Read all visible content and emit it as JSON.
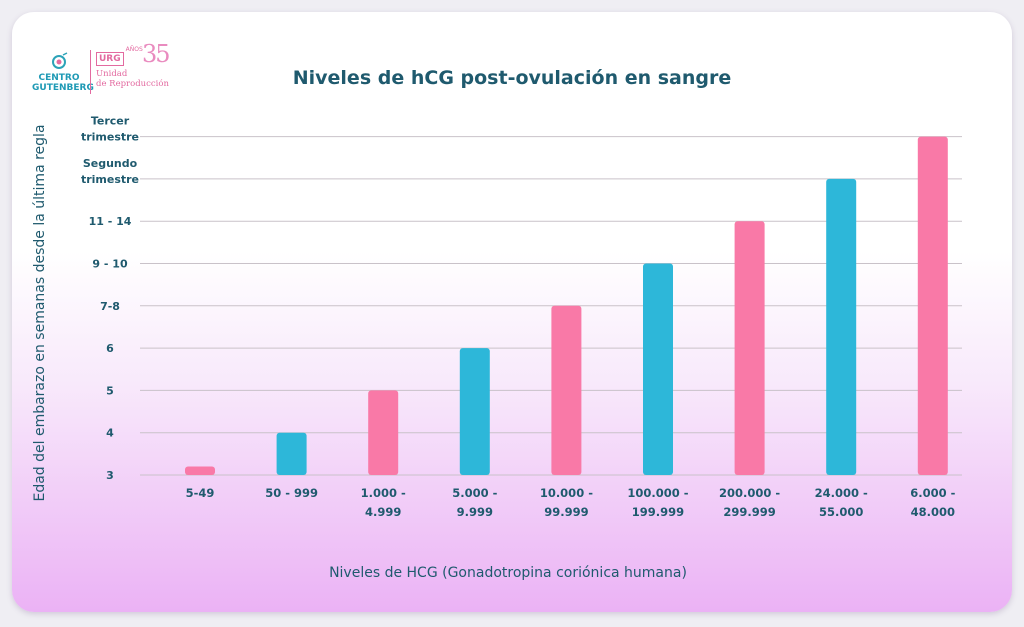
{
  "logo": {
    "left_name": [
      "CENTRO",
      "GUTENBERG"
    ],
    "badge": "URG",
    "anos": "AÑOS",
    "anniversary": "35",
    "unidad": [
      "Unidad",
      "de Reproducción"
    ]
  },
  "chart_data": {
    "type": "bar",
    "title": "Niveles de hCG post-ovulación en sangre",
    "xlabel": "Niveles de HCG  (Gonadotropina coriónica humana)",
    "ylabel": "Edad del embarazo en semanas desde la última regla",
    "y_ticks": [
      [
        "3"
      ],
      [
        "4"
      ],
      [
        "5"
      ],
      [
        "6"
      ],
      [
        "7-8"
      ],
      [
        "9 - 10"
      ],
      [
        "11 - 14"
      ],
      [
        "Segundo",
        "trimestre"
      ],
      [
        "Tercer",
        "trimestre"
      ]
    ],
    "categories": [
      [
        "5-49"
      ],
      [
        "50 - 999"
      ],
      [
        "1.000 -",
        "4.999"
      ],
      [
        "5.000 -",
        "9.999"
      ],
      [
        "10.000 -",
        "99.999"
      ],
      [
        "100.000 -",
        "199.999"
      ],
      [
        "200.000 -",
        "299.999"
      ],
      [
        "24.000 -",
        "55.000"
      ],
      [
        "6.000 -",
        "48.000"
      ]
    ],
    "values": [
      3.2,
      4,
      5,
      6,
      7,
      8,
      9,
      10,
      11
    ],
    "bar_colors": [
      "#f979a7",
      "#2db7d9",
      "#f979a7",
      "#2db7d9",
      "#f979a7",
      "#2db7d9",
      "#f979a7",
      "#2db7d9",
      "#f979a7"
    ],
    "grid": true,
    "gridline_color": "#c9c2c9"
  }
}
